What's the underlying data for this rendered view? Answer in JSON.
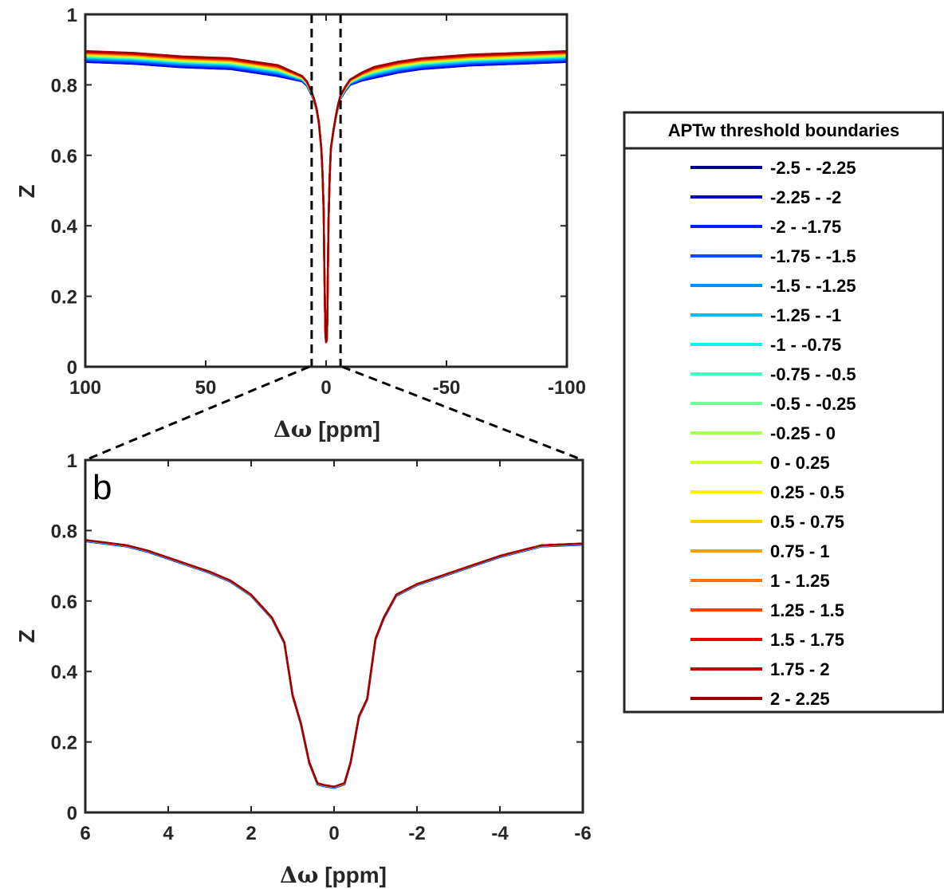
{
  "chart_data": [
    {
      "id": "overview",
      "type": "line",
      "title": "",
      "xlabel_symbol": "Δω",
      "xlabel_unit": "[ppm]",
      "ylabel": "Z",
      "xlim": [
        100,
        -100
      ],
      "ylim": [
        0,
        1
      ],
      "xticks": [
        100,
        50,
        0,
        -50,
        -100
      ],
      "xtick_labels": [
        "100",
        "50",
        "0",
        "-50",
        "-100"
      ],
      "yticks": [
        0,
        0.2,
        0.4,
        0.6,
        0.8,
        1
      ],
      "ytick_labels": [
        "0",
        "0.2",
        "0.4",
        "0.6",
        "0.8",
        "1"
      ],
      "zoom_window": [
        6,
        -6
      ],
      "x": [
        100,
        80,
        60,
        40,
        30,
        20,
        15,
        10,
        8,
        6,
        5,
        4,
        3,
        2,
        1.5,
        1,
        0.75,
        0.5,
        0.25,
        0,
        -0.25,
        -0.5,
        -0.75,
        -1,
        -1.5,
        -2,
        -3,
        -4,
        -5,
        -6,
        -8,
        -10,
        -15,
        -20,
        -30,
        -40,
        -60,
        -80,
        -100
      ],
      "base_values": [
        0.895,
        0.89,
        0.88,
        0.875,
        0.865,
        0.855,
        0.84,
        0.825,
        0.81,
        0.78,
        0.76,
        0.735,
        0.695,
        0.62,
        0.55,
        0.44,
        0.3,
        0.18,
        0.09,
        0.07,
        0.075,
        0.13,
        0.28,
        0.41,
        0.54,
        0.62,
        0.67,
        0.71,
        0.745,
        0.77,
        0.795,
        0.815,
        0.835,
        0.85,
        0.865,
        0.875,
        0.885,
        0.89,
        0.895
      ]
    },
    {
      "id": "zoom",
      "type": "line",
      "title": "",
      "xlabel_symbol": "Δω",
      "xlabel_unit": "[ppm]",
      "ylabel": "Z",
      "xlim": [
        6,
        -6
      ],
      "ylim": [
        0,
        1
      ],
      "xticks": [
        6,
        4,
        2,
        0,
        -2,
        -4,
        -6
      ],
      "xtick_labels": [
        "6",
        "4",
        "2",
        "0",
        "-2",
        "-4",
        "-6"
      ],
      "yticks": [
        0,
        0.2,
        0.4,
        0.6,
        0.8,
        1
      ],
      "ytick_labels": [
        "0",
        "0.2",
        "0.4",
        "0.6",
        "0.8",
        "1"
      ],
      "x": [
        6,
        5,
        4.5,
        4,
        3.5,
        3,
        2.5,
        2,
        1.5,
        1.2,
        1,
        0.8,
        0.6,
        0.4,
        0.25,
        0,
        -0.25,
        -0.4,
        -0.6,
        -0.8,
        -1,
        -1.2,
        -1.5,
        -2,
        -2.5,
        -3,
        -3.5,
        -4,
        -4.5,
        -5,
        -6
      ],
      "base_values": [
        0.77,
        0.755,
        0.74,
        0.72,
        0.7,
        0.68,
        0.655,
        0.615,
        0.55,
        0.48,
        0.33,
        0.25,
        0.14,
        0.08,
        0.075,
        0.07,
        0.08,
        0.14,
        0.27,
        0.32,
        0.49,
        0.55,
        0.615,
        0.645,
        0.665,
        0.685,
        0.705,
        0.725,
        0.74,
        0.755,
        0.76
      ]
    }
  ],
  "figure": {
    "panel_label": "b"
  },
  "legend": {
    "title": "APTw threshold boundaries",
    "entries": [
      {
        "label": "-2.5 - -2.25",
        "color": "#00008F",
        "offset": 0.0
      },
      {
        "label": "-2.25 - -2",
        "color": "#0000DF",
        "offset": 0.0
      },
      {
        "label": "-2 - -1.75",
        "color": "#0020FF",
        "offset": 0.002
      },
      {
        "label": "-1.75 - -1.5",
        "color": "#0050FF",
        "offset": 0.004
      },
      {
        "label": "-1.5 - -1.25",
        "color": "#0090FF",
        "offset": 0.006
      },
      {
        "label": "-1.25 - -1",
        "color": "#00C0FF",
        "offset": 0.008
      },
      {
        "label": "-1 - -0.75",
        "color": "#10F0F0",
        "offset": 0.01
      },
      {
        "label": "-0.75 - -0.5",
        "color": "#40FFC0",
        "offset": 0.011
      },
      {
        "label": "-0.5 - -0.25",
        "color": "#70FF90",
        "offset": 0.012
      },
      {
        "label": "-0.25 - 0",
        "color": "#A0FF60",
        "offset": 0.013
      },
      {
        "label": "0 - 0.25",
        "color": "#D0FF30",
        "offset": 0.014
      },
      {
        "label": "0.25 - 0.5",
        "color": "#FFF000",
        "offset": 0.015
      },
      {
        "label": "0.5 - 0.75",
        "color": "#FFD000",
        "offset": 0.016
      },
      {
        "label": "0.75 - 1",
        "color": "#FFA000",
        "offset": 0.017
      },
      {
        "label": "1 - 1.25",
        "color": "#FF7000",
        "offset": 0.018
      },
      {
        "label": "1.25 - 1.5",
        "color": "#FF4000",
        "offset": 0.019
      },
      {
        "label": "1.5 - 1.75",
        "color": "#F00000",
        "offset": 0.02
      },
      {
        "label": "1.75 - 2",
        "color": "#C80000",
        "offset": 0.021
      },
      {
        "label": "2 - 2.25",
        "color": "#A00000",
        "offset": 0.022
      }
    ]
  }
}
